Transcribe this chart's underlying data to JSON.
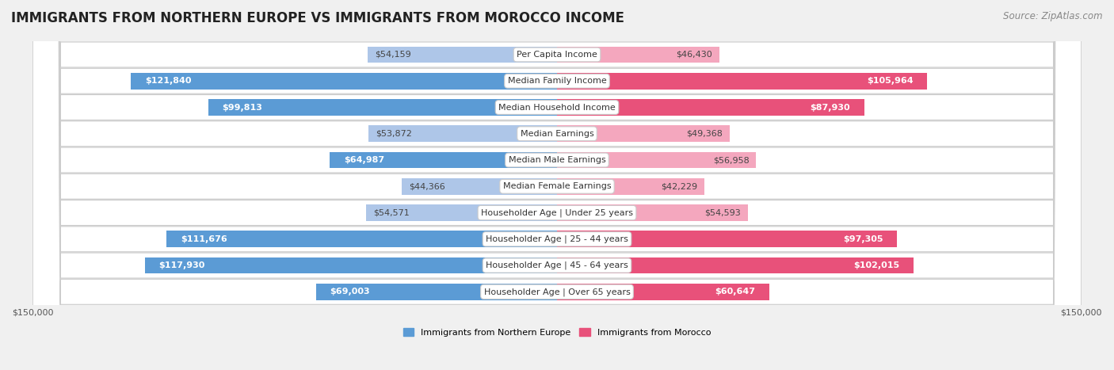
{
  "title": "IMMIGRANTS FROM NORTHERN EUROPE VS IMMIGRANTS FROM MOROCCO INCOME",
  "source": "Source: ZipAtlas.com",
  "categories": [
    "Per Capita Income",
    "Median Family Income",
    "Median Household Income",
    "Median Earnings",
    "Median Male Earnings",
    "Median Female Earnings",
    "Householder Age | Under 25 years",
    "Householder Age | 25 - 44 years",
    "Householder Age | 45 - 64 years",
    "Householder Age | Over 65 years"
  ],
  "left_values": [
    54159,
    121840,
    99813,
    53872,
    64987,
    44366,
    54571,
    111676,
    117930,
    69003
  ],
  "right_values": [
    46430,
    105964,
    87930,
    49368,
    56958,
    42229,
    54593,
    97305,
    102015,
    60647
  ],
  "left_labels": [
    "$54,159",
    "$121,840",
    "$99,813",
    "$53,872",
    "$64,987",
    "$44,366",
    "$54,571",
    "$111,676",
    "$117,930",
    "$69,003"
  ],
  "right_labels": [
    "$46,430",
    "$105,964",
    "$87,930",
    "$49,368",
    "$56,958",
    "$42,229",
    "$54,593",
    "$97,305",
    "$102,015",
    "$60,647"
  ],
  "max_value": 150000,
  "left_color_large": "#5b9bd5",
  "left_color_small": "#aec6e8",
  "right_color_large": "#e8517a",
  "right_color_small": "#f4a7be",
  "left_label_dark": "#444444",
  "right_label_dark": "#444444",
  "left_label_white": "#ffffff",
  "right_label_white": "#ffffff",
  "background_color": "#f0f0f0",
  "row_bg_color": "#ffffff",
  "row_border_color": "#cccccc",
  "legend_left": "Immigrants from Northern Europe",
  "legend_right": "Immigrants from Morocco",
  "title_fontsize": 12,
  "source_fontsize": 8.5,
  "bar_height": 0.62,
  "label_fontsize": 8,
  "category_fontsize": 8,
  "axis_label_fontsize": 8,
  "large_threshold": 60000
}
